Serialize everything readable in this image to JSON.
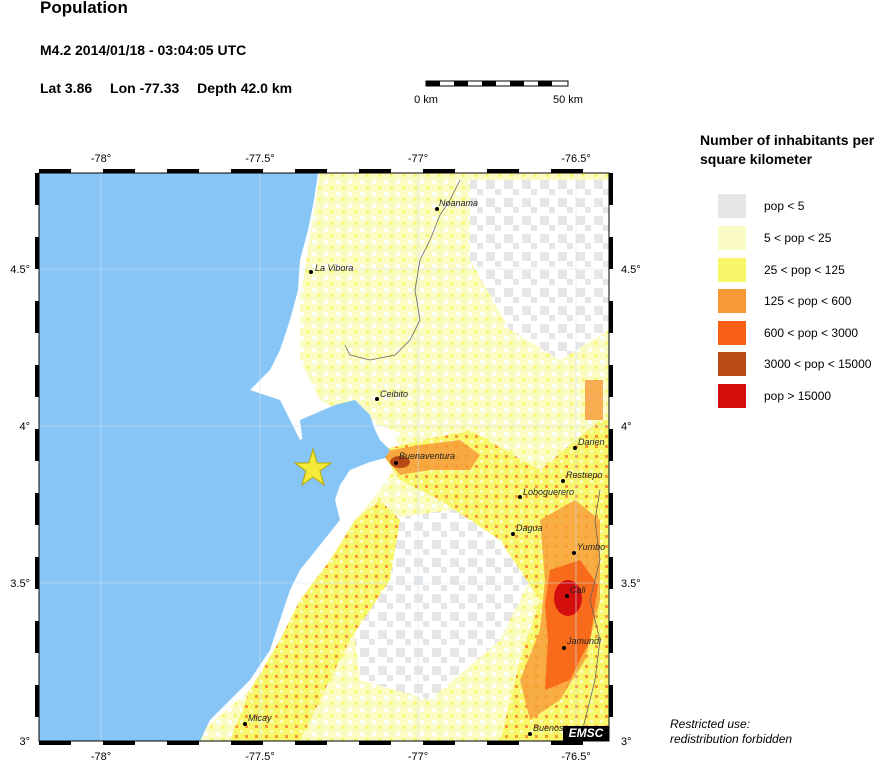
{
  "header": {
    "title": "Population",
    "event": "M4.2  2014/01/18 - 03:04:05 UTC",
    "lat_label": "Lat  3.86",
    "lon_label": "Lon -77.33",
    "depth_label": "Depth  42.0 km"
  },
  "scale": {
    "start_label": "0 km",
    "end_label": "50 km"
  },
  "axes": {
    "lon_ticks": [
      "-78°",
      "-77.5°",
      "-77°",
      "-76.5°"
    ],
    "lat_ticks": [
      "4.5°",
      "4°",
      "3.5°",
      "3°"
    ]
  },
  "legend": {
    "title": "Number of inhabitants per square kilometer",
    "items": [
      {
        "label": "pop < 5",
        "color": "#e6e6e6"
      },
      {
        "label": "5 < pop < 25",
        "color": "#fbfbc4"
      },
      {
        "label": "25 < pop < 125",
        "color": "#f8f76a"
      },
      {
        "label": "125 < pop < 600",
        "color": "#f79a36"
      },
      {
        "label": "600 < pop < 3000",
        "color": "#f75f14"
      },
      {
        "label": "3000 < pop < 15000",
        "color": "#b84a16"
      },
      {
        "label": "pop > 15000",
        "color": "#d40d0d"
      }
    ]
  },
  "cities": [
    {
      "name": "Noanama"
    },
    {
      "name": "La Vibora"
    },
    {
      "name": "Ceibito"
    },
    {
      "name": "Buenaventura"
    },
    {
      "name": "Darien"
    },
    {
      "name": "Restrepo"
    },
    {
      "name": "Loboguerero"
    },
    {
      "name": "Dagua"
    },
    {
      "name": "Yumbo"
    },
    {
      "name": "Cali"
    },
    {
      "name": "Jamundi"
    },
    {
      "name": "Micay"
    },
    {
      "name": "Buenos"
    }
  ],
  "badge": "EMSC",
  "footer": {
    "line1": "Restricted use:",
    "line2": "redistribution forbidden"
  },
  "colors": {
    "sea": "#86c5f5",
    "land": "#ffffff",
    "epicenter": "#f5e93a"
  },
  "epicenter_icon": "star-icon"
}
